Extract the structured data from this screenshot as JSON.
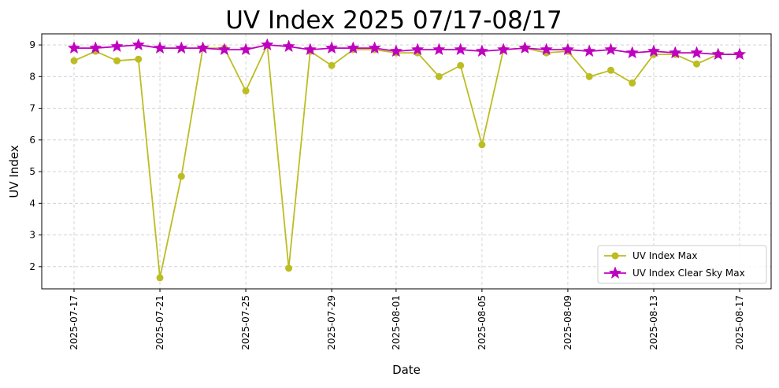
{
  "chart_data": {
    "type": "line",
    "title": "UV Index 2025 07/17-08/17",
    "xlabel": "Date",
    "ylabel": "UV Index",
    "x": [
      "2025-07-17",
      "2025-07-18",
      "2025-07-19",
      "2025-07-20",
      "2025-07-21",
      "2025-07-22",
      "2025-07-23",
      "2025-07-24",
      "2025-07-25",
      "2025-07-26",
      "2025-07-27",
      "2025-07-28",
      "2025-07-29",
      "2025-07-30",
      "2025-07-31",
      "2025-08-01",
      "2025-08-02",
      "2025-08-03",
      "2025-08-04",
      "2025-08-05",
      "2025-08-06",
      "2025-08-07",
      "2025-08-08",
      "2025-08-09",
      "2025-08-10",
      "2025-08-11",
      "2025-08-12",
      "2025-08-13",
      "2025-08-14",
      "2025-08-15",
      "2025-08-16",
      "2025-08-17"
    ],
    "xticks": [
      "2025-07-17",
      "2025-07-21",
      "2025-07-25",
      "2025-07-29",
      "2025-08-01",
      "2025-08-05",
      "2025-08-09",
      "2025-08-13",
      "2025-08-17"
    ],
    "yticks": [
      2,
      3,
      4,
      5,
      6,
      7,
      8,
      9
    ],
    "ylim": [
      1.3,
      9.35
    ],
    "grid": true,
    "legend_position": "lower-right",
    "series": [
      {
        "name": "UV Index Max",
        "color": "#bcbd22",
        "marker": "circle",
        "values": [
          8.5,
          8.8,
          8.5,
          8.55,
          1.65,
          4.85,
          8.9,
          8.9,
          7.55,
          9.0,
          1.95,
          8.8,
          8.35,
          8.85,
          8.85,
          8.75,
          8.75,
          8.0,
          8.35,
          5.85,
          8.85,
          8.9,
          8.75,
          8.8,
          8.0,
          8.2,
          7.8,
          8.7,
          8.7,
          8.4,
          8.7,
          8.7
        ]
      },
      {
        "name": "UV Index Clear Sky Max",
        "color": "#bf00bf",
        "marker": "star",
        "values": [
          8.9,
          8.9,
          8.95,
          9.0,
          8.9,
          8.9,
          8.9,
          8.85,
          8.85,
          9.0,
          8.95,
          8.85,
          8.9,
          8.9,
          8.9,
          8.8,
          8.85,
          8.85,
          8.85,
          8.8,
          8.85,
          8.9,
          8.85,
          8.85,
          8.8,
          8.85,
          8.75,
          8.8,
          8.75,
          8.75,
          8.7,
          8.7
        ]
      }
    ]
  }
}
